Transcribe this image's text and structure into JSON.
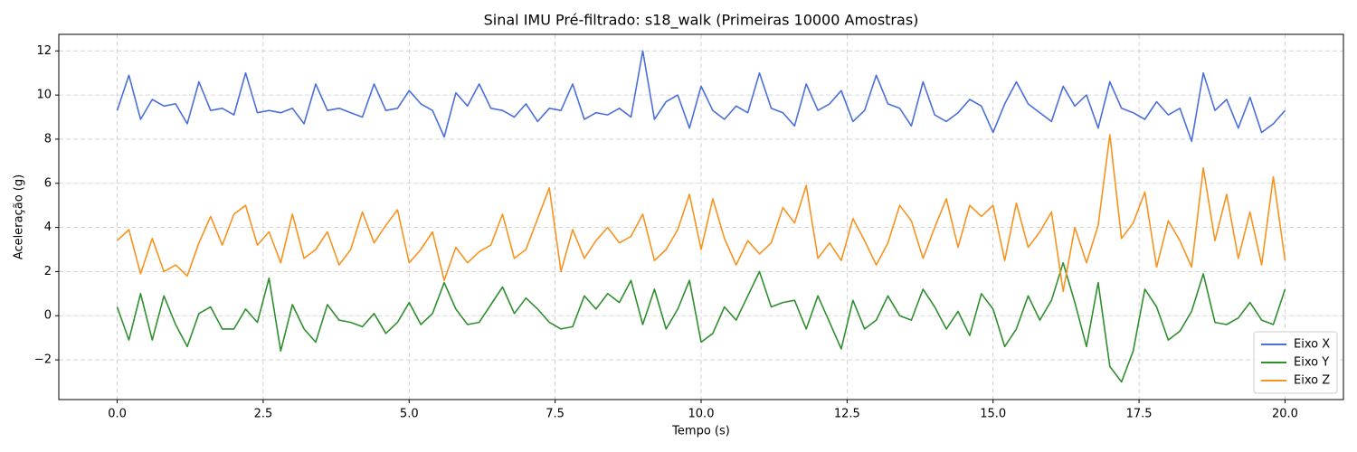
{
  "chart_data": {
    "type": "line",
    "title": "Sinal IMU Pré-filtrado: s18_walk (Primeiras 10000 Amostras)",
    "xlabel": "Tempo (s)",
    "ylabel": "Aceleração (g)",
    "x": [
      0,
      0.2,
      0.4,
      0.6,
      0.8,
      1,
      1.2,
      1.4,
      1.6,
      1.8,
      2,
      2.2,
      2.4,
      2.6,
      2.8,
      3,
      3.2,
      3.4,
      3.6,
      3.8,
      4,
      4.2,
      4.4,
      4.6,
      4.8,
      5,
      5.2,
      5.4,
      5.6,
      5.8,
      6,
      6.2,
      6.4,
      6.6,
      6.8,
      7,
      7.2,
      7.4,
      7.6,
      7.8,
      8,
      8.2,
      8.4,
      8.6,
      8.8,
      9,
      9.2,
      9.4,
      9.6,
      9.8,
      10,
      10.2,
      10.4,
      10.6,
      10.8,
      11,
      11.2,
      11.4,
      11.6,
      11.8,
      12,
      12.2,
      12.4,
      12.6,
      12.8,
      13,
      13.2,
      13.4,
      13.6,
      13.8,
      14,
      14.2,
      14.4,
      14.6,
      14.8,
      15,
      15.2,
      15.4,
      15.6,
      15.8,
      16,
      16.2,
      16.4,
      16.6,
      16.8,
      17,
      17.2,
      17.4,
      17.6,
      17.8,
      18,
      18.2,
      18.4,
      18.6,
      18.8,
      19,
      19.2,
      19.4,
      19.6,
      19.8,
      20
    ],
    "series": [
      {
        "name": "Eixo X",
        "color": "#4a6fdc",
        "values": [
          9.3,
          10.9,
          8.9,
          9.8,
          9.5,
          9.6,
          8.7,
          10.6,
          9.3,
          9.4,
          9.1,
          11.0,
          9.2,
          9.3,
          9.2,
          9.4,
          8.7,
          10.5,
          9.3,
          9.4,
          9.2,
          9.0,
          10.5,
          9.3,
          9.4,
          10.2,
          9.6,
          9.3,
          8.1,
          10.1,
          9.5,
          10.5,
          9.4,
          9.3,
          9.0,
          9.6,
          8.8,
          9.4,
          9.3,
          10.5,
          8.9,
          9.2,
          9.1,
          9.4,
          9.0,
          12.0,
          8.9,
          9.7,
          10.0,
          8.5,
          10.4,
          9.3,
          8.9,
          9.5,
          9.2,
          11.0,
          9.4,
          9.2,
          8.6,
          10.5,
          9.3,
          9.6,
          10.2,
          8.8,
          9.3,
          10.9,
          9.6,
          9.4,
          8.6,
          10.6,
          9.1,
          8.8,
          9.2,
          9.8,
          9.5,
          8.3,
          9.6,
          10.6,
          9.6,
          9.2,
          8.8,
          10.4,
          9.5,
          10.0,
          8.5,
          10.6,
          9.4,
          9.2,
          8.9,
          9.7,
          9.1,
          9.4,
          7.9,
          11.0,
          9.3,
          9.8,
          8.5,
          9.9,
          8.3,
          8.7,
          9.3
        ]
      },
      {
        "name": "Eixo Y",
        "color": "#2f8f2f",
        "values": [
          0.4,
          -1.1,
          1.0,
          -1.1,
          0.9,
          -0.4,
          -1.4,
          0.1,
          0.4,
          -0.6,
          -0.6,
          0.3,
          -0.3,
          1.7,
          -1.6,
          0.5,
          -0.6,
          -1.2,
          0.5,
          -0.2,
          -0.3,
          -0.5,
          0.1,
          -0.8,
          -0.3,
          0.6,
          -0.4,
          0.1,
          1.5,
          0.3,
          -0.4,
          -0.3,
          0.5,
          1.3,
          0.1,
          0.8,
          0.3,
          -0.3,
          -0.6,
          -0.5,
          0.9,
          0.3,
          1.0,
          0.6,
          1.6,
          -0.4,
          1.2,
          -0.6,
          0.3,
          1.6,
          -1.2,
          -0.8,
          0.4,
          -0.2,
          0.9,
          2.0,
          0.4,
          0.6,
          0.7,
          -0.6,
          0.9,
          -0.3,
          -1.5,
          0.7,
          -0.6,
          -0.2,
          0.9,
          0.0,
          -0.2,
          1.2,
          0.4,
          -0.6,
          0.2,
          -0.9,
          1.0,
          0.3,
          -1.4,
          -0.6,
          0.9,
          -0.2,
          0.7,
          2.4,
          0.6,
          -1.4,
          1.5,
          -2.3,
          -3.0,
          -1.6,
          1.2,
          0.4,
          -1.1,
          -0.7,
          0.2,
          1.9,
          -0.3,
          -0.4,
          -0.1,
          0.6,
          -0.2,
          -0.4,
          1.2
        ]
      },
      {
        "name": "Eixo Z",
        "color": "#f7931e",
        "values": [
          3.4,
          3.9,
          1.9,
          3.5,
          2.0,
          2.3,
          1.8,
          3.3,
          4.5,
          3.2,
          4.6,
          5.0,
          3.2,
          3.8,
          2.4,
          4.6,
          2.6,
          3.0,
          3.8,
          2.3,
          3.0,
          4.7,
          3.3,
          4.1,
          4.8,
          2.4,
          3.0,
          3.8,
          1.6,
          3.1,
          2.4,
          2.9,
          3.2,
          4.6,
          2.6,
          3.0,
          4.4,
          5.8,
          2.0,
          3.9,
          2.6,
          3.4,
          4.0,
          3.3,
          3.6,
          4.6,
          2.5,
          3.0,
          3.9,
          5.5,
          3.0,
          5.3,
          3.5,
          2.3,
          3.4,
          2.8,
          3.3,
          4.9,
          4.2,
          5.9,
          2.6,
          3.3,
          2.5,
          4.4,
          3.4,
          2.3,
          3.3,
          5.0,
          4.3,
          2.6,
          4.0,
          5.3,
          3.1,
          5.0,
          4.5,
          5.0,
          2.5,
          5.1,
          3.1,
          3.8,
          4.7,
          1.1,
          4.0,
          2.4,
          4.1,
          8.2,
          3.5,
          4.2,
          5.6,
          2.2,
          4.3,
          3.4,
          2.2,
          6.7,
          3.4,
          5.5,
          2.6,
          4.7,
          2.3,
          6.3,
          2.5
        ]
      }
    ],
    "xlim": [
      -1.0,
      21.0
    ],
    "ylim": [
      -3.8,
      12.75
    ],
    "xticks": [
      {
        "value": 0,
        "label": "0.0"
      },
      2.5,
      {
        "value": 5,
        "label": "5.0"
      },
      7.5,
      {
        "value": 10,
        "label": "10.0"
      },
      12.5,
      {
        "value": 15,
        "label": "15.0"
      },
      17.5,
      {
        "value": 20,
        "label": "20.0"
      }
    ],
    "yticks": [
      {
        "value": -2,
        "label": "−2"
      },
      0,
      2,
      4,
      6,
      8,
      10,
      12
    ],
    "grid": true,
    "legend": "lower right"
  }
}
